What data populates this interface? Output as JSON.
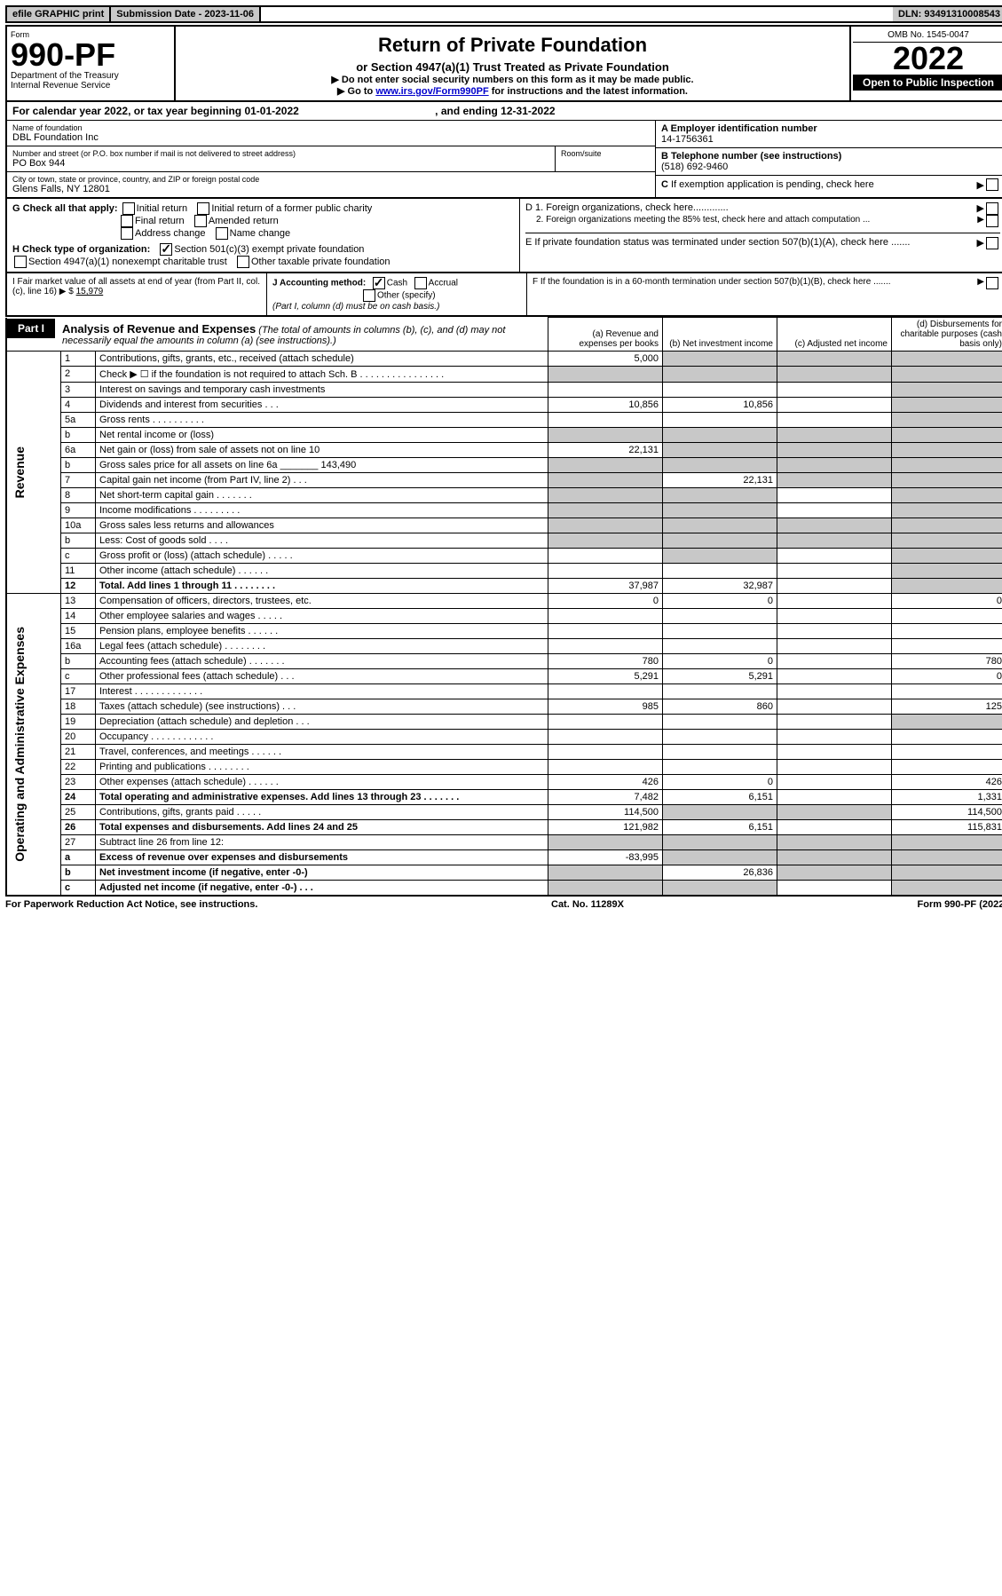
{
  "top_bar": {
    "efile": "efile GRAPHIC print",
    "submission_label": "Submission Date - 2023-11-06",
    "dln": "DLN: 93491310008543"
  },
  "header": {
    "form_label": "Form",
    "form_number": "990-PF",
    "dept": "Department of the Treasury",
    "irs": "Internal Revenue Service",
    "title": "Return of Private Foundation",
    "subtitle": "or Section 4947(a)(1) Trust Treated as Private Foundation",
    "note1": "▶ Do not enter social security numbers on this form as it may be made public.",
    "note2_prefix": "▶ Go to ",
    "note2_link": "www.irs.gov/Form990PF",
    "note2_suffix": " for instructions and the latest information.",
    "omb": "OMB No. 1545-0047",
    "year": "2022",
    "open": "Open to Public Inspection"
  },
  "cal_year": {
    "text": "For calendar year 2022, or tax year beginning 01-01-2022",
    "ending": ", and ending 12-31-2022"
  },
  "info": {
    "name_label": "Name of foundation",
    "name": "DBL Foundation Inc",
    "addr_label": "Number and street (or P.O. box number if mail is not delivered to street address)",
    "addr": "PO Box 944",
    "room_label": "Room/suite",
    "city_label": "City or town, state or province, country, and ZIP or foreign postal code",
    "city": "Glens Falls, NY  12801",
    "a_label": "A Employer identification number",
    "a_value": "14-1756361",
    "b_label": "B Telephone number (see instructions)",
    "b_value": "(518) 692-9460",
    "c_label": "C If exemption application is pending, check here"
  },
  "g": {
    "label": "G Check all that apply:",
    "opts": [
      "Initial return",
      "Initial return of a former public charity",
      "Final return",
      "Amended return",
      "Address change",
      "Name change"
    ]
  },
  "h": {
    "label": "H Check type of organization:",
    "opt1": "Section 501(c)(3) exempt private foundation",
    "opt2": "Section 4947(a)(1) nonexempt charitable trust",
    "opt3": "Other taxable private foundation"
  },
  "d": {
    "d1": "D 1. Foreign organizations, check here.............",
    "d2": "2. Foreign organizations meeting the 85% test, check here and attach computation ...",
    "e": "E If private foundation status was terminated under section 507(b)(1)(A), check here .......",
    "f": "F If the foundation is in a 60-month termination under section 507(b)(1)(B), check here ......."
  },
  "i": {
    "label": "I Fair market value of all assets at end of year (from Part II, col. (c), line 16) ▶ $",
    "value": "15,979"
  },
  "j": {
    "label": "J Accounting method:",
    "cash": "Cash",
    "accrual": "Accrual",
    "other": "Other (specify)",
    "note": "(Part I, column (d) must be on cash basis.)"
  },
  "part1": {
    "label": "Part I",
    "title": "Analysis of Revenue and Expenses",
    "note": "(The total of amounts in columns (b), (c), and (d) may not necessarily equal the amounts in column (a) (see instructions).)",
    "col_a": "(a)  Revenue and expenses per books",
    "col_b": "(b)  Net investment income",
    "col_c": "(c)  Adjusted net income",
    "col_d": "(d)  Disbursements for charitable purposes (cash basis only)"
  },
  "rows": [
    {
      "n": "1",
      "desc": "Contributions, gifts, grants, etc., received (attach schedule)",
      "a": "5,000",
      "b": "",
      "c": "",
      "d": "",
      "shade_b": true,
      "shade_c": true,
      "shade_d": true
    },
    {
      "n": "2",
      "desc": "Check ▶ ☐ if the foundation is not required to attach Sch. B    .  .  .  .  .  .  .  .  .  .  .  .  .  .  .  .",
      "a": "",
      "b": "",
      "c": "",
      "d": "",
      "shade_a": true,
      "shade_b": true,
      "shade_c": true,
      "shade_d": true
    },
    {
      "n": "3",
      "desc": "Interest on savings and temporary cash investments",
      "a": "",
      "b": "",
      "c": "",
      "d": "",
      "shade_d": true
    },
    {
      "n": "4",
      "desc": "Dividends and interest from securities    .    .    .",
      "a": "10,856",
      "b": "10,856",
      "c": "",
      "d": "",
      "shade_d": true
    },
    {
      "n": "5a",
      "desc": "Gross rents    .    .    .    .    .    .    .    .    .    .",
      "a": "",
      "b": "",
      "c": "",
      "d": "",
      "shade_d": true
    },
    {
      "n": "b",
      "desc": "Net rental income or (loss)",
      "a": "",
      "b": "",
      "c": "",
      "d": "",
      "shade_a": true,
      "shade_b": true,
      "shade_c": true,
      "shade_d": true
    },
    {
      "n": "6a",
      "desc": "Net gain or (loss) from sale of assets not on line 10",
      "a": "22,131",
      "b": "",
      "c": "",
      "d": "",
      "shade_b": true,
      "shade_c": true,
      "shade_d": true
    },
    {
      "n": "b",
      "desc": "Gross sales price for all assets on line 6a _______ 143,490",
      "a": "",
      "b": "",
      "c": "",
      "d": "",
      "shade_a": true,
      "shade_b": true,
      "shade_c": true,
      "shade_d": true
    },
    {
      "n": "7",
      "desc": "Capital gain net income (from Part IV, line 2)    .    .    .",
      "a": "",
      "b": "22,131",
      "c": "",
      "d": "",
      "shade_a": true,
      "shade_c": true,
      "shade_d": true
    },
    {
      "n": "8",
      "desc": "Net short-term capital gain   .   .   .   .   .   .   .",
      "a": "",
      "b": "",
      "c": "",
      "d": "",
      "shade_a": true,
      "shade_b": true,
      "shade_d": true
    },
    {
      "n": "9",
      "desc": "Income modifications   .   .   .   .   .   .   .   .   .",
      "a": "",
      "b": "",
      "c": "",
      "d": "",
      "shade_a": true,
      "shade_b": true,
      "shade_d": true
    },
    {
      "n": "10a",
      "desc": "Gross sales less returns and allowances",
      "a": "",
      "b": "",
      "c": "",
      "d": "",
      "shade_a": true,
      "shade_b": true,
      "shade_c": true,
      "shade_d": true
    },
    {
      "n": "b",
      "desc": "Less: Cost of goods sold    .    .    .    .",
      "a": "",
      "b": "",
      "c": "",
      "d": "",
      "shade_a": true,
      "shade_b": true,
      "shade_c": true,
      "shade_d": true
    },
    {
      "n": "c",
      "desc": "Gross profit or (loss) (attach schedule)    .    .    .    .    .",
      "a": "",
      "b": "",
      "c": "",
      "d": "",
      "shade_b": true,
      "shade_d": true
    },
    {
      "n": "11",
      "desc": "Other income (attach schedule)    .    .    .    .    .    .",
      "a": "",
      "b": "",
      "c": "",
      "d": "",
      "shade_d": true
    },
    {
      "n": "12",
      "desc": "Total. Add lines 1 through 11    .    .    .    .    .    .    .    .",
      "a": "37,987",
      "b": "32,987",
      "c": "",
      "d": "",
      "bold": true,
      "shade_d": true
    },
    {
      "n": "13",
      "desc": "Compensation of officers, directors, trustees, etc.",
      "a": "0",
      "b": "0",
      "c": "",
      "d": "0"
    },
    {
      "n": "14",
      "desc": "Other employee salaries and wages    .    .    .    .    .",
      "a": "",
      "b": "",
      "c": "",
      "d": ""
    },
    {
      "n": "15",
      "desc": "Pension plans, employee benefits   .   .   .   .   .   .",
      "a": "",
      "b": "",
      "c": "",
      "d": ""
    },
    {
      "n": "16a",
      "desc": "Legal fees (attach schedule)   .   .   .   .   .   .   .   .",
      "a": "",
      "b": "",
      "c": "",
      "d": ""
    },
    {
      "n": "b",
      "desc": "Accounting fees (attach schedule)   .   .   .   .   .   .   .",
      "a": "780",
      "b": "0",
      "c": "",
      "d": "780"
    },
    {
      "n": "c",
      "desc": "Other professional fees (attach schedule)    .    .    .",
      "a": "5,291",
      "b": "5,291",
      "c": "",
      "d": "0"
    },
    {
      "n": "17",
      "desc": "Interest   .   .   .   .   .   .   .   .   .   .   .   .   .",
      "a": "",
      "b": "",
      "c": "",
      "d": ""
    },
    {
      "n": "18",
      "desc": "Taxes (attach schedule) (see instructions)    .    .    .",
      "a": "985",
      "b": "860",
      "c": "",
      "d": "125"
    },
    {
      "n": "19",
      "desc": "Depreciation (attach schedule) and depletion    .    .    .",
      "a": "",
      "b": "",
      "c": "",
      "d": "",
      "shade_d": true
    },
    {
      "n": "20",
      "desc": "Occupancy   .   .   .   .   .   .   .   .   .   .   .   .",
      "a": "",
      "b": "",
      "c": "",
      "d": ""
    },
    {
      "n": "21",
      "desc": "Travel, conferences, and meetings   .   .   .   .   .   .",
      "a": "",
      "b": "",
      "c": "",
      "d": ""
    },
    {
      "n": "22",
      "desc": "Printing and publications   .   .   .   .   .   .   .   .",
      "a": "",
      "b": "",
      "c": "",
      "d": ""
    },
    {
      "n": "23",
      "desc": "Other expenses (attach schedule)   .   .   .   .   .   .",
      "a": "426",
      "b": "0",
      "c": "",
      "d": "426"
    },
    {
      "n": "24",
      "desc": "Total operating and administrative expenses. Add lines 13 through 23   .   .   .   .   .   .   .",
      "a": "7,482",
      "b": "6,151",
      "c": "",
      "d": "1,331",
      "bold": true
    },
    {
      "n": "25",
      "desc": "Contributions, gifts, grants paid    .    .    .    .    .",
      "a": "114,500",
      "b": "",
      "c": "",
      "d": "114,500",
      "shade_b": true,
      "shade_c": true
    },
    {
      "n": "26",
      "desc": "Total expenses and disbursements. Add lines 24 and 25",
      "a": "121,982",
      "b": "6,151",
      "c": "",
      "d": "115,831",
      "bold": true
    },
    {
      "n": "27",
      "desc": "Subtract line 26 from line 12:",
      "a": "",
      "b": "",
      "c": "",
      "d": "",
      "shade_a": true,
      "shade_b": true,
      "shade_c": true,
      "shade_d": true
    },
    {
      "n": "a",
      "desc": "Excess of revenue over expenses and disbursements",
      "a": "-83,995",
      "b": "",
      "c": "",
      "d": "",
      "bold": true,
      "shade_b": true,
      "shade_c": true,
      "shade_d": true
    },
    {
      "n": "b",
      "desc": "Net investment income (if negative, enter -0-)",
      "a": "",
      "b": "26,836",
      "c": "",
      "d": "",
      "bold": true,
      "shade_a": true,
      "shade_c": true,
      "shade_d": true
    },
    {
      "n": "c",
      "desc": "Adjusted net income (if negative, enter -0-)    .    .    .",
      "a": "",
      "b": "",
      "c": "",
      "d": "",
      "bold": true,
      "shade_a": true,
      "shade_b": true,
      "shade_d": true
    }
  ],
  "side_labels": {
    "revenue": "Revenue",
    "expenses": "Operating and Administrative Expenses"
  },
  "footer": {
    "left": "For Paperwork Reduction Act Notice, see instructions.",
    "center": "Cat. No. 11289X",
    "right": "Form 990-PF (2022)"
  },
  "colors": {
    "shade": "#c8c8c8",
    "link": "#0000cc"
  }
}
